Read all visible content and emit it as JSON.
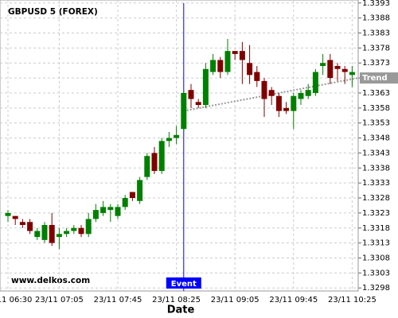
{
  "chart_data": {
    "type": "candlestick",
    "title": "GBPUSD 5 (FOREX)",
    "watermark": "www.delkos.com",
    "x_label": "Date",
    "categories": [
      "23/11 06:30",
      null,
      null,
      null,
      null,
      null,
      null,
      "23/11 07:05",
      null,
      null,
      null,
      null,
      null,
      null,
      null,
      "23/11 07:45",
      null,
      null,
      null,
      null,
      null,
      null,
      null,
      "23/11 08:25",
      null,
      null,
      null,
      null,
      null,
      null,
      null,
      "23/11 09:05",
      null,
      null,
      null,
      null,
      null,
      null,
      null,
      "23/11 09:45",
      null,
      null,
      null,
      null,
      null,
      null,
      null,
      "23/11 10:25"
    ],
    "open": [
      1.3322,
      1.3322,
      1.332,
      1.332,
      1.3315,
      1.3314,
      1.3319,
      1.3315,
      1.3316,
      1.3317,
      1.3318,
      1.3316,
      1.3321,
      1.3323,
      1.3324,
      1.3322,
      1.3325,
      1.333,
      1.3327,
      1.3335,
      1.3343,
      1.3337,
      1.3347,
      1.3348,
      1.3351,
      1.3364,
      1.336,
      1.3359,
      1.337,
      1.3374,
      1.337,
      1.3377,
      1.3377,
      1.3373,
      1.337,
      1.3367,
      1.3364,
      1.3362,
      1.3358,
      1.3357,
      1.3361,
      1.3362,
      1.3363,
      1.3372,
      1.3374,
      1.3372,
      1.3371,
      1.3369
    ],
    "high": [
      1.3324,
      1.3322,
      1.3321,
      1.3321,
      1.3318,
      1.332,
      1.3323,
      1.3318,
      1.3318,
      1.3319,
      1.3319,
      1.3323,
      1.3326,
      1.3327,
      1.3326,
      1.3326,
      1.3329,
      1.333,
      1.3335,
      1.3343,
      1.3345,
      1.3348,
      1.335,
      1.3352,
      1.3364,
      1.3366,
      1.3361,
      1.3373,
      1.3376,
      1.3375,
      1.3381,
      1.3377,
      1.338,
      1.3379,
      1.3372,
      1.3368,
      1.3365,
      1.3363,
      1.336,
      1.3363,
      1.3364,
      1.3366,
      1.3371,
      1.3376,
      1.3376,
      1.3373,
      1.3372,
      1.3372
    ],
    "low": [
      1.332,
      1.3319,
      1.3318,
      1.3316,
      1.3314,
      1.3313,
      1.3312,
      1.3311,
      1.3315,
      1.3316,
      1.3315,
      1.3315,
      1.332,
      1.3322,
      1.332,
      1.3321,
      1.3324,
      1.3327,
      1.3326,
      1.3334,
      1.3336,
      1.3336,
      1.3345,
      1.3346,
      1.335,
      1.3358,
      1.3358,
      1.3358,
      1.3369,
      1.3368,
      1.3369,
      1.3374,
      1.3366,
      1.3366,
      1.3365,
      1.3355,
      1.3359,
      1.3355,
      1.3356,
      1.3351,
      1.3359,
      1.3361,
      1.3362,
      1.3369,
      1.3366,
      1.3367,
      1.3366,
      1.3365
    ],
    "close": [
      1.3323,
      1.3321,
      1.3319,
      1.3317,
      1.3317,
      1.3319,
      1.3313,
      1.3316,
      1.3317,
      1.3318,
      1.3316,
      1.3321,
      1.3324,
      1.3325,
      1.3325,
      1.3325,
      1.3328,
      1.3328,
      1.3334,
      1.3342,
      1.3337,
      1.3347,
      1.3348,
      1.3349,
      1.3363,
      1.3361,
      1.3359,
      1.3371,
      1.3374,
      1.337,
      1.3377,
      1.3376,
      1.3374,
      1.3369,
      1.3367,
      1.3361,
      1.3362,
      1.3357,
      1.3357,
      1.3362,
      1.3363,
      1.3364,
      1.337,
      1.3373,
      1.3368,
      1.3371,
      1.337,
      1.337
    ],
    "up_color": "#008000",
    "down_color": "#800000",
    "ylim": [
      1.3297,
      1.3394
    ],
    "yticks": [
      1.3298,
      1.3303,
      1.3308,
      1.3313,
      1.3318,
      1.3323,
      1.3328,
      1.3333,
      1.3338,
      1.3343,
      1.3348,
      1.3353,
      1.3358,
      1.3363,
      1.3368,
      1.3373,
      1.3378,
      1.3383,
      1.3388,
      1.3393
    ],
    "grid": true,
    "event": {
      "label": "Event",
      "color": "#0000ff"
    },
    "trend": {
      "label": "Trend",
      "start": 1.3357,
      "end": 1.3368,
      "color": "#999999"
    }
  }
}
